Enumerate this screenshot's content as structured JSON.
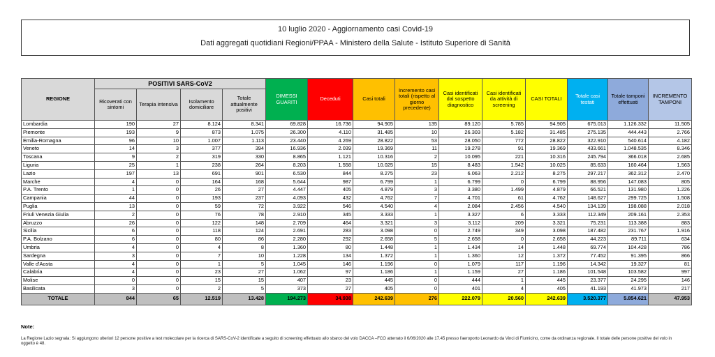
{
  "header": {
    "title": "10 luglio 2020 - Aggiornamento casi Covid-19",
    "subtitle": "Dati aggregati quotidiani Regioni/PPAA - Ministero della Salute - Istituto Superiore di Sanità"
  },
  "table": {
    "group_header": "POSITIVI SARS-CoV2",
    "columns": [
      "REGIONE",
      "Ricoverati con sintomi",
      "Terapia intensiva",
      "Isolamento domiciliare",
      "Totale attualmente positivi",
      "DIMESSI GUARITI",
      "Deceduti",
      "Casi totali",
      "Incremento casi totali (rispetto al giorno precedente)",
      "Casi identificati dal sospetto diagnostico",
      "Casi identificati da attività di screening",
      "CASI TOTALI",
      "Totale casi testati",
      "Totale tamponi effettuati",
      "INCREMENTO TAMPONI"
    ],
    "rows": [
      [
        "Lombardia",
        "190",
        "27",
        "8.124",
        "8.341",
        "69.828",
        "16.736",
        "94.905",
        "135",
        "89.120",
        "5.785",
        "94.905",
        "675.013",
        "1.126.332",
        "11.505"
      ],
      [
        "Piemonte",
        "193",
        "9",
        "873",
        "1.075",
        "26.300",
        "4.110",
        "31.485",
        "10",
        "26.303",
        "5.182",
        "31.485",
        "275.135",
        "444.443",
        "2.766"
      ],
      [
        "Emilia-Romagna",
        "96",
        "10",
        "1.007",
        "1.113",
        "23.440",
        "4.269",
        "28.822",
        "53",
        "28.050",
        "772",
        "28.822",
        "322.910",
        "540.614",
        "4.182"
      ],
      [
        "Veneto",
        "14",
        "3",
        "377",
        "394",
        "16.936",
        "2.039",
        "19.369",
        "11",
        "19.278",
        "91",
        "19.369",
        "433.661",
        "1.048.535",
        "8.346"
      ],
      [
        "Toscana",
        "9",
        "2",
        "319",
        "330",
        "8.865",
        "1.121",
        "10.316",
        "2",
        "10.095",
        "221",
        "10.316",
        "245.794",
        "366.018",
        "2.685"
      ],
      [
        "Liguria",
        "25",
        "1",
        "238",
        "264",
        "8.203",
        "1.558",
        "10.025",
        "15",
        "8.483",
        "1.542",
        "10.025",
        "85.633",
        "160.464",
        "1.563"
      ],
      [
        "Lazio",
        "197",
        "13",
        "691",
        "901",
        "6.530",
        "844",
        "8.275",
        "23",
        "6.063",
        "2.212",
        "8.275",
        "297.217",
        "362.312",
        "2.470"
      ],
      [
        "Marche",
        "4",
        "0",
        "164",
        "168",
        "5.644",
        "987",
        "6.799",
        "1",
        "6.799",
        "0",
        "6.799",
        "88.956",
        "147.083",
        "805"
      ],
      [
        "P.A. Trento",
        "1",
        "0",
        "26",
        "27",
        "4.447",
        "405",
        "4.879",
        "3",
        "3.380",
        "1.499",
        "4.879",
        "66.521",
        "131.980",
        "1.226"
      ],
      [
        "Campania",
        "44",
        "0",
        "193",
        "237",
        "4.093",
        "432",
        "4.762",
        "7",
        "4.701",
        "61",
        "4.762",
        "148.627",
        "299.725",
        "1.508"
      ],
      [
        "Puglia",
        "13",
        "0",
        "59",
        "72",
        "3.922",
        "546",
        "4.540",
        "4",
        "2.084",
        "2.456",
        "4.540",
        "134.139",
        "198.088",
        "2.018"
      ],
      [
        "Friuli Venezia Giulia",
        "2",
        "0",
        "76",
        "78",
        "2.910",
        "345",
        "3.333",
        "1",
        "3.327",
        "6",
        "3.333",
        "112.349",
        "209.161",
        "2.353"
      ],
      [
        "Abruzzo",
        "26",
        "0",
        "122",
        "148",
        "2.709",
        "464",
        "3.321",
        "3",
        "3.112",
        "209",
        "3.321",
        "75.231",
        "113.388",
        "883"
      ],
      [
        "Sicilia",
        "6",
        "0",
        "118",
        "124",
        "2.691",
        "283",
        "3.098",
        "0",
        "2.749",
        "349",
        "3.098",
        "187.482",
        "231.767",
        "1.916"
      ],
      [
        "P.A. Bolzano",
        "6",
        "0",
        "80",
        "86",
        "2.280",
        "292",
        "2.658",
        "5",
        "2.658",
        "0",
        "2.658",
        "44.223",
        "89.711",
        "634"
      ],
      [
        "Umbria",
        "4",
        "0",
        "4",
        "8",
        "1.360",
        "80",
        "1.448",
        "1",
        "1.434",
        "14",
        "1.448",
        "69.774",
        "104.428",
        "786"
      ],
      [
        "Sardegna",
        "3",
        "0",
        "7",
        "10",
        "1.228",
        "134",
        "1.372",
        "1",
        "1.360",
        "12",
        "1.372",
        "77.452",
        "91.395",
        "866"
      ],
      [
        "Valle d'Aosta",
        "4",
        "0",
        "1",
        "5",
        "1.045",
        "146",
        "1.196",
        "0",
        "1.079",
        "117",
        "1.196",
        "14.342",
        "19.327",
        "81"
      ],
      [
        "Calabria",
        "4",
        "0",
        "23",
        "27",
        "1.062",
        "97",
        "1.186",
        "1",
        "1.159",
        "27",
        "1.186",
        "101.548",
        "103.582",
        "997"
      ],
      [
        "Molise",
        "0",
        "0",
        "15",
        "15",
        "407",
        "23",
        "445",
        "0",
        "444",
        "1",
        "445",
        "23.377",
        "24.295",
        "146"
      ],
      [
        "Basilicata",
        "3",
        "0",
        "2",
        "5",
        "373",
        "27",
        "405",
        "0",
        "401",
        "4",
        "405",
        "41.193",
        "41.973",
        "217"
      ],
      [
        "TOTALE",
        "844",
        "65",
        "12.519",
        "13.428",
        "194.273",
        "34.938",
        "242.639",
        "276",
        "222.079",
        "20.560",
        "242.639",
        "3.520.377",
        "5.854.621",
        "47.953"
      ]
    ]
  },
  "notes": {
    "heading": "Note:",
    "text": "La Regione Lazio segnala: Si aggiungono ulteriori 12 persone positive a test molecolare per la ricerca di SARS-CoV-2 identificate a seguito di screening effettuato allo sbarco del volo DACCA –FCO atterrato il 6/06/2020 alle 17.45 presso l'aeroporto Leonardo da Vinci di Fiumicino, come da ordinanza regionale. Il totale delle persone positive del volo in oggetto è 48."
  }
}
